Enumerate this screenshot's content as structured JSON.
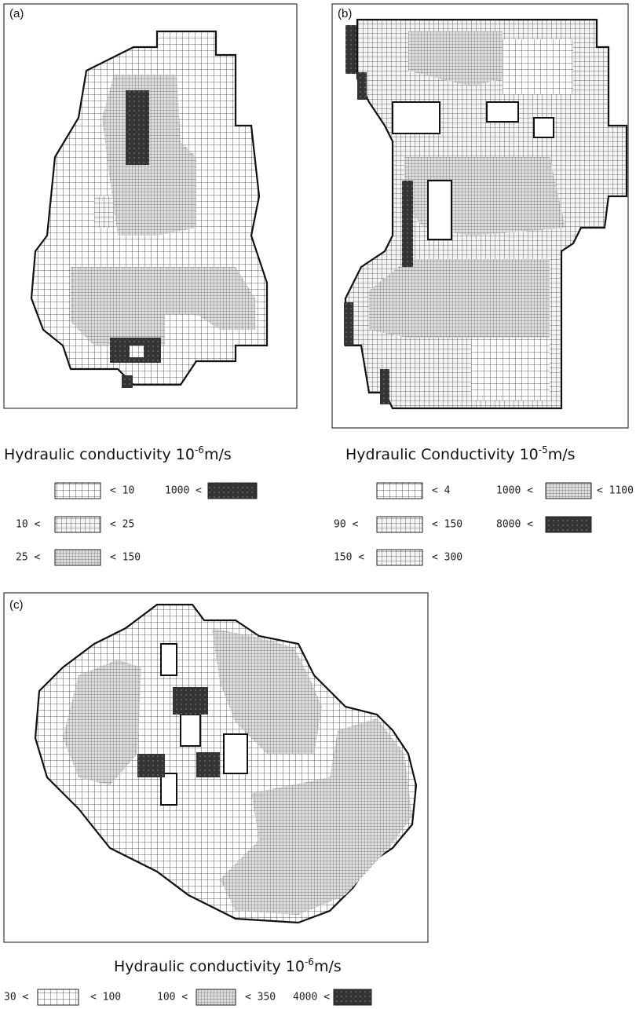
{
  "panels": [
    {
      "label": "(a)",
      "caption": {
        "text": "Hydraulic conductivity 10",
        "exponent": "-6",
        "unit": "m/s"
      },
      "legend": [
        {
          "upper": "< 10"
        },
        {
          "lower": "1000 <"
        },
        {
          "lower": "10 <",
          "upper": "< 25"
        },
        {
          "lower": "25 <",
          "upper": "< 150"
        }
      ]
    },
    {
      "label": "(b)",
      "caption": {
        "text": "Hydraulic Conductivity 10",
        "exponent": "-5",
        "unit": "m/s"
      },
      "legend": [
        {
          "upper": "< 4"
        },
        {
          "lower": "1000 <",
          "upper": "< 1100"
        },
        {
          "lower": "90 <",
          "upper": "< 150"
        },
        {
          "lower": "8000 <"
        },
        {
          "lower": "150 <",
          "upper": "< 300"
        }
      ]
    },
    {
      "label": "(c)",
      "caption": {
        "text": "Hydraulic conductivity 10",
        "exponent": "-6",
        "unit": "m/s"
      },
      "legend": [
        {
          "lower": "30 <",
          "upper": "< 100"
        },
        {
          "lower": "100 <",
          "upper": "< 350"
        },
        {
          "lower": "4000 <"
        }
      ]
    }
  ]
}
